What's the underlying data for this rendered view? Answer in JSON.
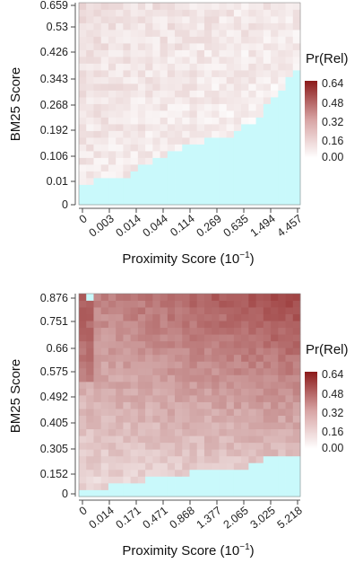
{
  "chart_data": [
    {
      "type": "heatmap",
      "xlabel": "Proximity Score (10",
      "xlabel_sup": "−1",
      "xlabel_close": ")",
      "ylabel": "BM25 Score",
      "x_ticks": [
        "0",
        "0.003",
        "0.014",
        "0.044",
        "0.114",
        "0.269",
        "0.635",
        "1.494",
        "4.457"
      ],
      "y_ticks": [
        "0",
        "0.01",
        "0.106",
        "0.192",
        "0.268",
        "0.343",
        "0.426",
        "0.53",
        "0.659"
      ],
      "legend": {
        "title": "Pr(Rel)",
        "labels": [
          "0.64",
          "0.48",
          "0.32",
          "0.16",
          "0.00"
        ],
        "min": 0,
        "max": 0.64
      },
      "grid": {
        "cols": 30,
        "rows": 30
      },
      "empty_color": "#c9f9fb",
      "low_color": "#ffffff",
      "high_color": "#8b1a1a",
      "empty_boundary": [
        0.1,
        0.1,
        0.12,
        0.14,
        0.14,
        0.14,
        0.15,
        0.17,
        0.19,
        0.21,
        0.23,
        0.25,
        0.27,
        0.28,
        0.29,
        0.3,
        0.31,
        0.32,
        0.33,
        0.34,
        0.35,
        0.37,
        0.39,
        0.41,
        0.44,
        0.49,
        0.53,
        0.57,
        0.62,
        0.67
      ],
      "probability_base": 0.06,
      "probability_range": 0.1
    },
    {
      "type": "heatmap",
      "xlabel": "Proximity Score (10",
      "xlabel_sup": "−1",
      "xlabel_close": ")",
      "ylabel": "BM25 Score",
      "x_ticks": [
        "0",
        "0.014",
        "0.171",
        "0.471",
        "0.868",
        "1.377",
        "2.065",
        "3.025",
        "5.218"
      ],
      "y_ticks": [
        "0",
        "0.152",
        "0.305",
        "0.405",
        "0.492",
        "0.575",
        "0.66",
        "0.751",
        "0.876"
      ],
      "legend": {
        "title": "Pr(Rel)",
        "labels": [
          "0.64",
          "0.48",
          "0.32",
          "0.16",
          "0.00"
        ],
        "min": 0,
        "max": 0.64
      },
      "grid": {
        "cols": 30,
        "rows": 30
      },
      "empty_color": "#c9f9fb",
      "low_color": "#ffffff",
      "high_color": "#8b1a1a",
      "empty_boundary": [
        0.02,
        0.03,
        0.05,
        0.05,
        0.06,
        0.06,
        0.07,
        0.07,
        0.08,
        0.09,
        0.1,
        0.1,
        0.11,
        0.11,
        0.11,
        0.12,
        0.12,
        0.12,
        0.13,
        0.12,
        0.13,
        0.13,
        0.14,
        0.16,
        0.17,
        0.19,
        0.19,
        0.19,
        0.19,
        0.19
      ],
      "probability_base": 0.1,
      "probability_range": 0.42
    }
  ]
}
